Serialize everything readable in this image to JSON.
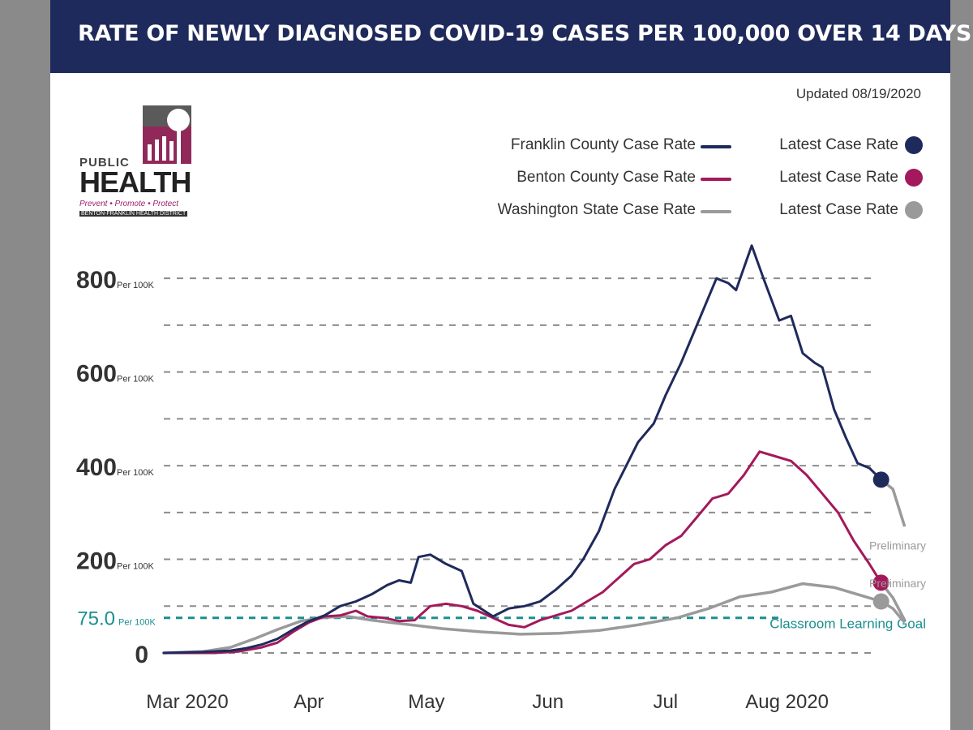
{
  "header": {
    "title": "RATE OF NEWLY DIAGNOSED COVID-19 CASES PER 100,000 OVER 14 DAYS"
  },
  "updated": "Updated 08/19/2020",
  "logo": {
    "public": "PUBLIC",
    "health": "HEALTH",
    "tagline": "Prevent • Promote • Protect",
    "district": "BENTON-FRANKLIN HEALTH DISTRICT"
  },
  "legend": [
    {
      "label": "Franklin County Case Rate",
      "latest": "Latest Case Rate",
      "color": "#1f2a5c"
    },
    {
      "label": "Benton County Case Rate",
      "latest": "Latest Case Rate",
      "color": "#a3195b"
    },
    {
      "label": "Washington State Case Rate",
      "latest": "Latest Case Rate",
      "color": "#9a9a9a"
    }
  ],
  "chart_data": {
    "type": "line",
    "title": "RATE OF NEWLY DIAGNOSED COVID-19 CASES PER 100,000 OVER 14 DAYS",
    "xlabel": "",
    "ylabel": "",
    "ylim": [
      0,
      880
    ],
    "y_ticks": [
      {
        "value": 0,
        "label": "0",
        "unit": ""
      },
      {
        "value": 200,
        "label": "200",
        "unit": "Per 100K"
      },
      {
        "value": 400,
        "label": "400",
        "unit": "Per 100K"
      },
      {
        "value": 600,
        "label": "600",
        "unit": "Per 100K"
      },
      {
        "value": 800,
        "label": "800",
        "unit": "Per 100K"
      }
    ],
    "gridlines": [
      0,
      100,
      200,
      300,
      400,
      500,
      600,
      700,
      800
    ],
    "x_ticks": [
      {
        "date": "2020-03-01",
        "label": "Mar 2020"
      },
      {
        "date": "2020-04-01",
        "label": "Apr"
      },
      {
        "date": "2020-05-01",
        "label": "May"
      },
      {
        "date": "2020-06-01",
        "label": "Jun"
      },
      {
        "date": "2020-07-01",
        "label": "Jul"
      },
      {
        "date": "2020-08-01",
        "label": "Aug 2020"
      }
    ],
    "xlim": [
      "2020-02-24",
      "2020-08-23"
    ],
    "goal": {
      "value": 75,
      "label": "75.0",
      "unit": "Per 100K",
      "text": "Classroom Learning Goal",
      "color": "#1a8f8f"
    },
    "preliminary": {
      "label": "Preliminary",
      "color": "#9a9a9a"
    },
    "series": [
      {
        "name": "Franklin County Case Rate",
        "color": "#1f2a5c",
        "points": [
          [
            "2020-02-24",
            0
          ],
          [
            "2020-03-05",
            2
          ],
          [
            "2020-03-12",
            5
          ],
          [
            "2020-03-16",
            10
          ],
          [
            "2020-03-20",
            18
          ],
          [
            "2020-03-24",
            30
          ],
          [
            "2020-03-28",
            50
          ],
          [
            "2020-04-01",
            68
          ],
          [
            "2020-04-05",
            80
          ],
          [
            "2020-04-09",
            100
          ],
          [
            "2020-04-13",
            110
          ],
          [
            "2020-04-17",
            125
          ],
          [
            "2020-04-21",
            145
          ],
          [
            "2020-04-24",
            155
          ],
          [
            "2020-04-27",
            150
          ],
          [
            "2020-04-29",
            205
          ],
          [
            "2020-05-02",
            210
          ],
          [
            "2020-05-06",
            190
          ],
          [
            "2020-05-10",
            175
          ],
          [
            "2020-05-13",
            105
          ],
          [
            "2020-05-18",
            78
          ],
          [
            "2020-05-22",
            95
          ],
          [
            "2020-05-26",
            100
          ],
          [
            "2020-05-30",
            110
          ],
          [
            "2020-06-03",
            135
          ],
          [
            "2020-06-07",
            165
          ],
          [
            "2020-06-10",
            200
          ],
          [
            "2020-06-14",
            260
          ],
          [
            "2020-06-18",
            350
          ],
          [
            "2020-06-21",
            400
          ],
          [
            "2020-06-24",
            450
          ],
          [
            "2020-06-28",
            490
          ],
          [
            "2020-07-01",
            550
          ],
          [
            "2020-07-05",
            620
          ],
          [
            "2020-07-08",
            680
          ],
          [
            "2020-07-11",
            740
          ],
          [
            "2020-07-14",
            800
          ],
          [
            "2020-07-17",
            790
          ],
          [
            "2020-07-19",
            775
          ],
          [
            "2020-07-23",
            870
          ],
          [
            "2020-07-26",
            800
          ],
          [
            "2020-07-30",
            710
          ],
          [
            "2020-08-02",
            720
          ],
          [
            "2020-08-05",
            640
          ],
          [
            "2020-08-08",
            620
          ],
          [
            "2020-08-10",
            610
          ],
          [
            "2020-08-13",
            520
          ],
          [
            "2020-08-16",
            460
          ],
          [
            "2020-08-19",
            405
          ],
          [
            "2020-08-22",
            395
          ],
          [
            "2020-08-25",
            370
          ]
        ]
      },
      {
        "name": "Benton County Case Rate",
        "color": "#a3195b",
        "points": [
          [
            "2020-02-24",
            0
          ],
          [
            "2020-03-08",
            0
          ],
          [
            "2020-03-14",
            3
          ],
          [
            "2020-03-20",
            12
          ],
          [
            "2020-03-24",
            22
          ],
          [
            "2020-03-28",
            45
          ],
          [
            "2020-04-01",
            65
          ],
          [
            "2020-04-05",
            78
          ],
          [
            "2020-04-09",
            80
          ],
          [
            "2020-04-13",
            90
          ],
          [
            "2020-04-16",
            78
          ],
          [
            "2020-04-20",
            75
          ],
          [
            "2020-04-24",
            68
          ],
          [
            "2020-04-28",
            70
          ],
          [
            "2020-05-02",
            100
          ],
          [
            "2020-05-06",
            105
          ],
          [
            "2020-05-10",
            100
          ],
          [
            "2020-05-14",
            90
          ],
          [
            "2020-05-18",
            75
          ],
          [
            "2020-05-22",
            60
          ],
          [
            "2020-05-26",
            55
          ],
          [
            "2020-05-30",
            70
          ],
          [
            "2020-06-03",
            80
          ],
          [
            "2020-06-07",
            90
          ],
          [
            "2020-06-11",
            110
          ],
          [
            "2020-06-15",
            130
          ],
          [
            "2020-06-19",
            160
          ],
          [
            "2020-06-23",
            190
          ],
          [
            "2020-06-27",
            200
          ],
          [
            "2020-07-01",
            230
          ],
          [
            "2020-07-05",
            250
          ],
          [
            "2020-07-09",
            290
          ],
          [
            "2020-07-13",
            330
          ],
          [
            "2020-07-17",
            340
          ],
          [
            "2020-07-21",
            380
          ],
          [
            "2020-07-25",
            430
          ],
          [
            "2020-07-29",
            420
          ],
          [
            "2020-08-02",
            410
          ],
          [
            "2020-08-06",
            380
          ],
          [
            "2020-08-10",
            340
          ],
          [
            "2020-08-14",
            300
          ],
          [
            "2020-08-18",
            240
          ],
          [
            "2020-08-22",
            190
          ],
          [
            "2020-08-25",
            150
          ]
        ]
      },
      {
        "name": "Washington State Case Rate",
        "color": "#9a9a9a",
        "points": [
          [
            "2020-02-24",
            0
          ],
          [
            "2020-03-05",
            3
          ],
          [
            "2020-03-12",
            12
          ],
          [
            "2020-03-18",
            30
          ],
          [
            "2020-03-24",
            50
          ],
          [
            "2020-03-30",
            68
          ],
          [
            "2020-04-05",
            76
          ],
          [
            "2020-04-11",
            78
          ],
          [
            "2020-04-17",
            70
          ],
          [
            "2020-04-25",
            62
          ],
          [
            "2020-05-05",
            52
          ],
          [
            "2020-05-15",
            45
          ],
          [
            "2020-05-25",
            40
          ],
          [
            "2020-06-04",
            42
          ],
          [
            "2020-06-14",
            48
          ],
          [
            "2020-06-24",
            60
          ],
          [
            "2020-07-04",
            75
          ],
          [
            "2020-07-12",
            95
          ],
          [
            "2020-07-20",
            120
          ],
          [
            "2020-07-28",
            130
          ],
          [
            "2020-08-05",
            148
          ],
          [
            "2020-08-13",
            140
          ],
          [
            "2020-08-21",
            120
          ],
          [
            "2020-08-25",
            110
          ]
        ]
      }
    ],
    "preliminary_segments": [
      {
        "series": "Franklin County Case Rate",
        "points": [
          [
            "2020-08-25",
            370
          ],
          [
            "2020-08-28",
            350
          ],
          [
            "2020-08-31",
            270
          ]
        ]
      },
      {
        "series": "Benton County Case Rate",
        "points": [
          [
            "2020-08-25",
            150
          ],
          [
            "2020-08-28",
            118
          ],
          [
            "2020-08-31",
            70
          ]
        ]
      },
      {
        "series": "Washington State Case Rate",
        "points": [
          [
            "2020-08-25",
            110
          ],
          [
            "2020-08-28",
            95
          ],
          [
            "2020-08-31",
            65
          ]
        ]
      }
    ],
    "latest": [
      {
        "series": "Franklin County Case Rate",
        "date": "2020-08-25",
        "value": 370,
        "color": "#1f2a5c"
      },
      {
        "series": "Benton County Case Rate",
        "date": "2020-08-25",
        "value": 150,
        "color": "#a3195b"
      },
      {
        "series": "Washington State Case Rate",
        "date": "2020-08-25",
        "value": 110,
        "color": "#9a9a9a"
      }
    ]
  }
}
